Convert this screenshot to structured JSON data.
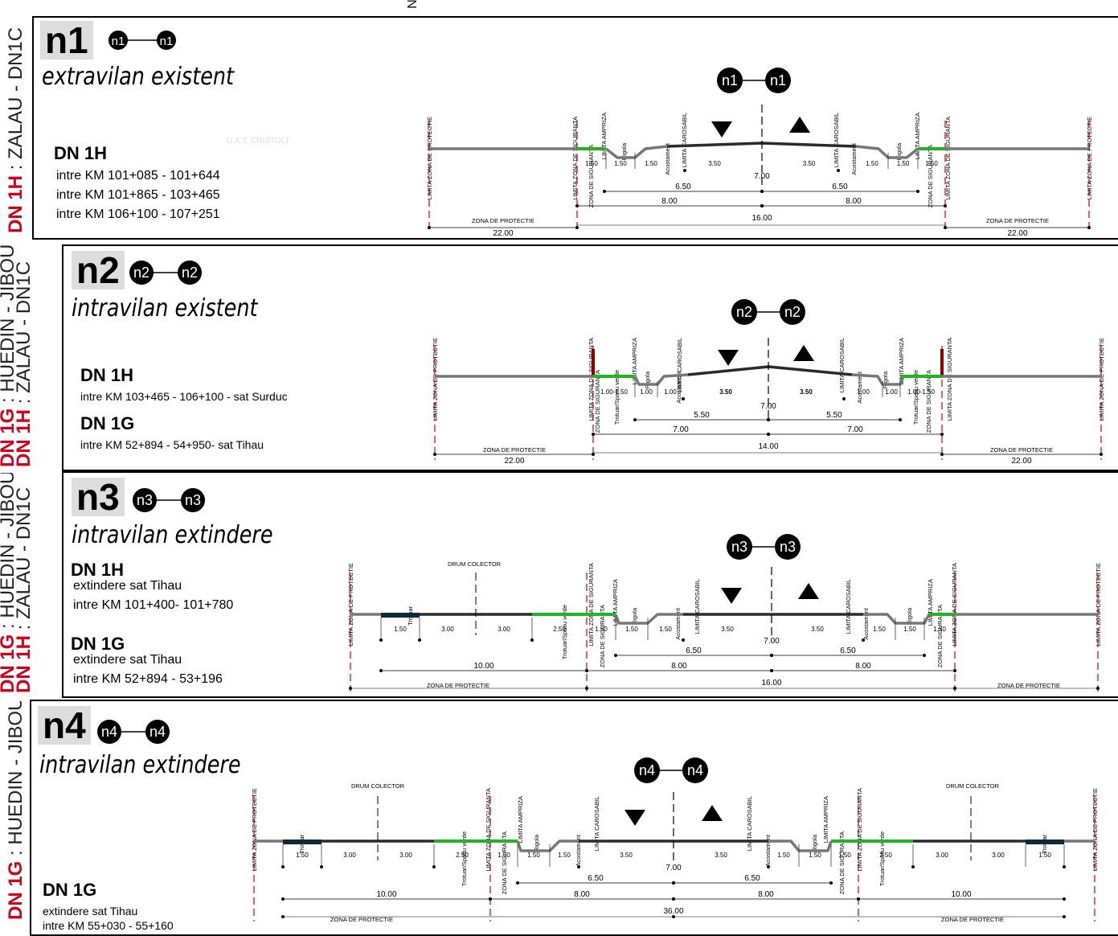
{
  "header_fragment": "N",
  "watermark": "U.A.T. CRISTOLT",
  "label_texts": {
    "limita_protectie": "LIMITA ZONA DE PROTECTIE",
    "limita_siguranta": "LIMITA ZONA DE SIGURANTA",
    "zona_siguranta": "ZONA DE SIGURANTA",
    "limita_ampriza": "LIMITA AMPRIZA",
    "limita_carosabil": "LIMITA CAROSABIL",
    "rigola": "Rigola",
    "acostament": "Acostament",
    "trotuar_spatiu": "Trotuar/Spatiu verde",
    "trotuar": "Trotuar",
    "drum_colector": "DRUM COLECTOR",
    "zona_protectie": "ZONA DE PROTECTIE"
  },
  "panels": [
    {
      "id": "n1",
      "side_parts": [
        {
          "t": "DN 1H",
          "c": "red"
        },
        {
          "t": " : ZALAU - DN1C",
          "c": "blk"
        }
      ],
      "code": "n1",
      "marker": "n1",
      "subtitle": "extravilan existent",
      "roads": [
        {
          "name": "DN 1H",
          "lines": [
            "intre KM 101+085 - 101+644",
            "intre KM 101+865 - 103+465",
            "intre KM 106+100 - 107+251"
          ]
        }
      ],
      "dims_row1": [
        "1.50",
        "1.50",
        "1.50",
        "3.50",
        "3.50",
        "1.50",
        "1.50",
        "1.50"
      ],
      "axis_width": "7.00",
      "half_a": "6.50",
      "half_b": "6.50",
      "half2_a": "8.00",
      "half2_b": "8.00",
      "total": "16.00",
      "prot_left": "22.00",
      "prot_right": "22.00"
    },
    {
      "id": "n2",
      "side_parts": [
        {
          "t": "DN 1H",
          "c": "red"
        },
        {
          "t": " : ZALAU - DN1C",
          "c": "blk"
        }
      ],
      "side_parts2": [
        {
          "t": "DN 1G",
          "c": "red"
        },
        {
          "t": " : HUEDIN - JIBOU",
          "c": "blk"
        }
      ],
      "code": "n2",
      "marker": "n2",
      "subtitle": "intravilan existent",
      "roads": [
        {
          "name": "DN 1H",
          "lines": [
            "intre KM 103+465 - 106+100 - sat Surduc"
          ]
        },
        {
          "name": "DN 1G",
          "lines": [
            "intre KM 52+894 - 54+950- sat Tihau"
          ]
        }
      ],
      "dims_row1": [
        "1.00-1.50",
        "1.00",
        "1.00",
        "3.50",
        "3.50",
        "1.00",
        "1.00",
        "1.00-1.50"
      ],
      "axis_width": "7.00",
      "half_a": "5.50",
      "half_b": "5.50",
      "half2_a": "7.00",
      "half2_b": "7.00",
      "total": "14.00",
      "prot_left": "22.00",
      "prot_right": "22.00"
    },
    {
      "id": "n3",
      "side_parts": [
        {
          "t": "DN 1H",
          "c": "red"
        },
        {
          "t": " : ZALAU - DN1C",
          "c": "blk"
        }
      ],
      "side_parts2": [
        {
          "t": "DN 1G",
          "c": "red"
        },
        {
          "t": " : HUEDIN - JIBOU",
          "c": "blk"
        }
      ],
      "code": "n3",
      "marker": "n3",
      "subtitle": "intravilan extindere",
      "roads": [
        {
          "name": "DN 1H",
          "lines": [
            "extindere sat Tihau",
            "intre KM 101+400- 101+780"
          ]
        },
        {
          "name": "DN 1G",
          "lines": [
            "extindere sat Tihau",
            "intre KM 52+894 - 53+196"
          ]
        }
      ],
      "dims_row1": [
        "1.50",
        "3.00",
        "3.00",
        "2.50",
        "1.50",
        "1.50",
        "1.50",
        "3.50",
        "3.50",
        "1.50",
        "1.50",
        "1.50"
      ],
      "axis_width": "7.00",
      "half_a": "6.50",
      "half_b": "6.50",
      "half2_a": "8.00",
      "half2_b": "8.00",
      "colector": "10.00",
      "total": "16.00"
    },
    {
      "id": "n4",
      "side_parts": [
        {
          "t": "DN 1G",
          "c": "red"
        },
        {
          "t": " : HUEDIN - JIBOU",
          "c": "blk"
        }
      ],
      "code": "n4",
      "marker": "n4",
      "subtitle": "intravilan extindere",
      "roads": [
        {
          "name": "DN 1G",
          "lines": [
            "extindere sat Tihau",
            "intre KM 55+030 - 55+160"
          ]
        }
      ],
      "dims_row1": [
        "1.50",
        "3.00",
        "3.00",
        "2.50",
        "1.50",
        "1.50",
        "1.50",
        "3.50",
        "3.50",
        "1.50",
        "1.50",
        "1.50",
        "2.50",
        "3.00",
        "3.00",
        "1.50"
      ],
      "axis_width": "7.00",
      "half_a": "6.50",
      "half_b": "6.50",
      "half2_a": "8.00",
      "half2_b": "8.00",
      "colector_a": "10.00",
      "colector_b": "10.00",
      "total": "36.00"
    }
  ],
  "colors": {
    "green": "#22b422",
    "red_dash": "#e03030",
    "road_dark": "#2a2a2a",
    "road_grey": "#777777",
    "accent_red": "#d0021b"
  }
}
